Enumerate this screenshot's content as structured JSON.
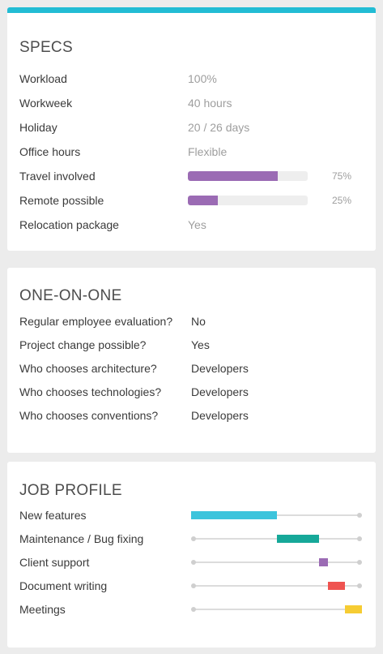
{
  "specs": {
    "title": "SPECS",
    "rows": [
      {
        "label": "Workload",
        "value": "100%"
      },
      {
        "label": "Workweek",
        "value": "40 hours"
      },
      {
        "label": "Holiday",
        "value": "20 / 26 days"
      },
      {
        "label": "Office hours",
        "value": "Flexible"
      },
      {
        "label": "Travel involved",
        "pct_label": "75%",
        "fraction": 0.75,
        "color": "#9b6bb4"
      },
      {
        "label": "Remote possible",
        "pct_label": "25%",
        "fraction": 0.25,
        "color": "#9b6bb4"
      },
      {
        "label": "Relocation package",
        "value": "Yes"
      }
    ]
  },
  "one_on_one": {
    "title": "ONE-ON-ONE",
    "rows": [
      {
        "label": "Regular employee evaluation?",
        "value": "No"
      },
      {
        "label": "Project change possible?",
        "value": "Yes"
      },
      {
        "label": "Who chooses architecture?",
        "value": "Developers"
      },
      {
        "label": "Who chooses technologies?",
        "value": "Developers"
      },
      {
        "label": "Who chooses conventions?",
        "value": "Developers"
      }
    ]
  },
  "job_profile": {
    "title": "JOB PROFILE",
    "rows": [
      {
        "label": "New features",
        "start": 0.0,
        "end": 0.5,
        "color": "#3cc4dc"
      },
      {
        "label": "Maintenance / Bug fixing",
        "start": 0.5,
        "end": 0.75,
        "color": "#16a899"
      },
      {
        "label": "Client support",
        "start": 0.75,
        "end": 0.8,
        "color": "#9b6bb4"
      },
      {
        "label": "Document writing",
        "start": 0.8,
        "end": 0.9,
        "color": "#ef5350"
      },
      {
        "label": "Meetings",
        "start": 0.9,
        "end": 1.0,
        "color": "#f6cc33"
      }
    ]
  }
}
